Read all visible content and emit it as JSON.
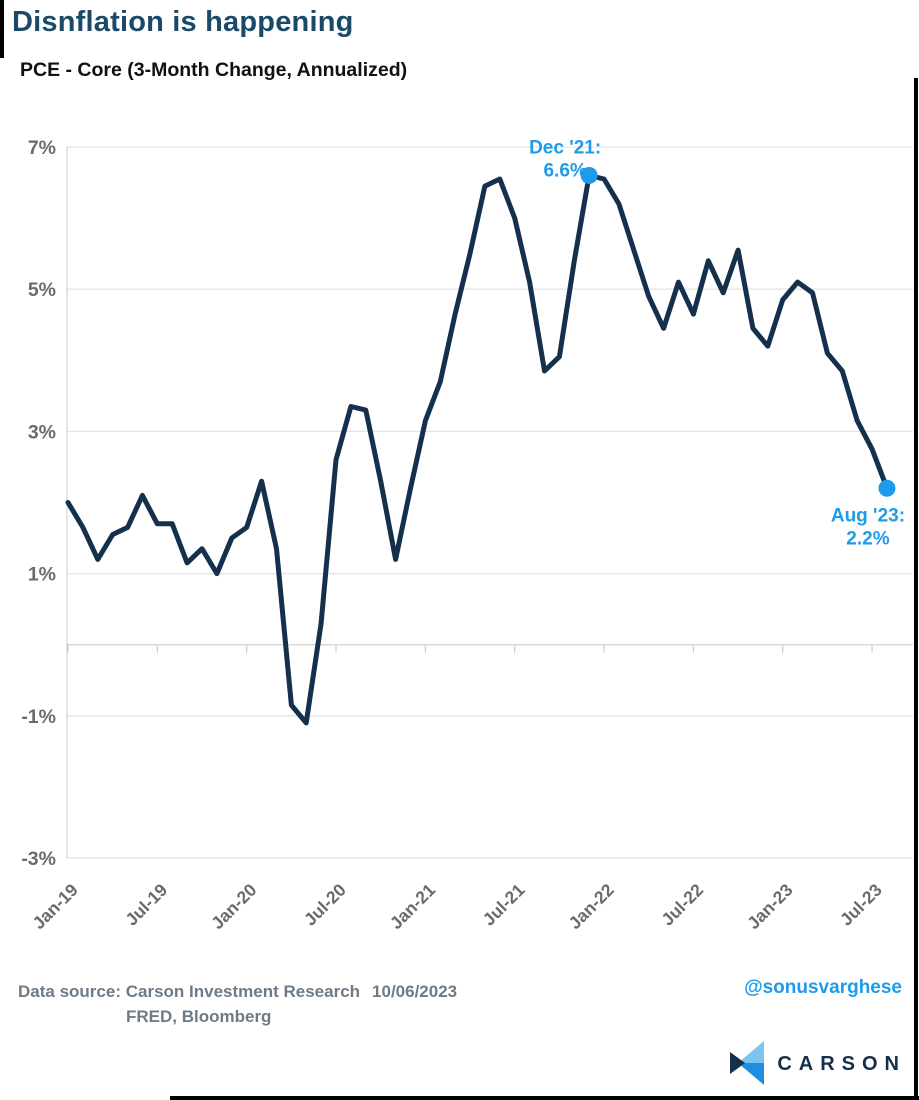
{
  "page": {
    "title": "Disnflation is happening",
    "subtitle": "PCE - Core (3-Month Change, Annualized)"
  },
  "chart_data": {
    "type": "line",
    "title": "PCE - Core (3-Month Change, Annualized)",
    "categories": [
      "Jan-19",
      "Feb-19",
      "Mar-19",
      "Apr-19",
      "May-19",
      "Jun-19",
      "Jul-19",
      "Aug-19",
      "Sep-19",
      "Oct-19",
      "Nov-19",
      "Dec-19",
      "Jan-20",
      "Feb-20",
      "Mar-20",
      "Apr-20",
      "May-20",
      "Jun-20",
      "Jul-20",
      "Aug-20",
      "Sep-20",
      "Oct-20",
      "Nov-20",
      "Dec-20",
      "Jan-21",
      "Feb-21",
      "Mar-21",
      "Apr-21",
      "May-21",
      "Jun-21",
      "Jul-21",
      "Aug-21",
      "Sep-21",
      "Oct-21",
      "Nov-21",
      "Dec-21",
      "Jan-22",
      "Feb-22",
      "Mar-22",
      "Apr-22",
      "May-22",
      "Jun-22",
      "Jul-22",
      "Aug-22",
      "Sep-22",
      "Oct-22",
      "Nov-22",
      "Dec-22",
      "Jan-23",
      "Feb-23",
      "Mar-23",
      "Apr-23",
      "May-23",
      "Jun-23",
      "Jul-23",
      "Aug-23"
    ],
    "values": [
      2.0,
      1.65,
      1.2,
      1.55,
      1.65,
      2.1,
      1.7,
      1.7,
      1.15,
      1.35,
      1.0,
      1.5,
      1.65,
      2.3,
      1.35,
      -0.85,
      -1.1,
      0.3,
      2.6,
      3.35,
      3.3,
      2.3,
      1.2,
      2.2,
      3.15,
      3.7,
      4.65,
      5.5,
      6.45,
      6.55,
      6.0,
      5.1,
      3.85,
      4.05,
      5.4,
      6.6,
      6.55,
      6.2,
      5.55,
      4.9,
      4.45,
      5.1,
      4.65,
      5.4,
      4.95,
      5.55,
      4.45,
      4.2,
      4.85,
      5.1,
      4.95,
      4.1,
      3.85,
      3.15,
      2.75,
      2.2
    ],
    "ylim": [
      -3,
      7
    ],
    "y_tick_values": [
      7,
      5,
      3,
      1,
      -1,
      -3
    ],
    "y_tick_labels": [
      "7%",
      "5%",
      "3%",
      "1%",
      "-1%",
      "-3%"
    ],
    "x_tick_indices": [
      0,
      6,
      12,
      18,
      24,
      30,
      36,
      42,
      48,
      54
    ],
    "grid": "horizontal-only",
    "legend": "none",
    "line_color": "#14304d",
    "accent_color": "#1e9be9",
    "axis_text_color": "#6b6b6b",
    "annotations": [
      {
        "line1": "Dec '21:",
        "line2": "6.6%",
        "category": "Dec-21",
        "index": 35,
        "value": 6.6
      },
      {
        "line1": "Aug '23:",
        "line2": "2.2%",
        "category": "Aug-23",
        "index": 55,
        "value": 2.2
      }
    ]
  },
  "footer": {
    "source_prefix": "Data source:",
    "source_line1": "Carson Investment Research",
    "date": "10/06/2023",
    "source_line2": "FRED, Bloomberg",
    "handle": "@sonusvarghese",
    "logo_text": "CARSON"
  }
}
